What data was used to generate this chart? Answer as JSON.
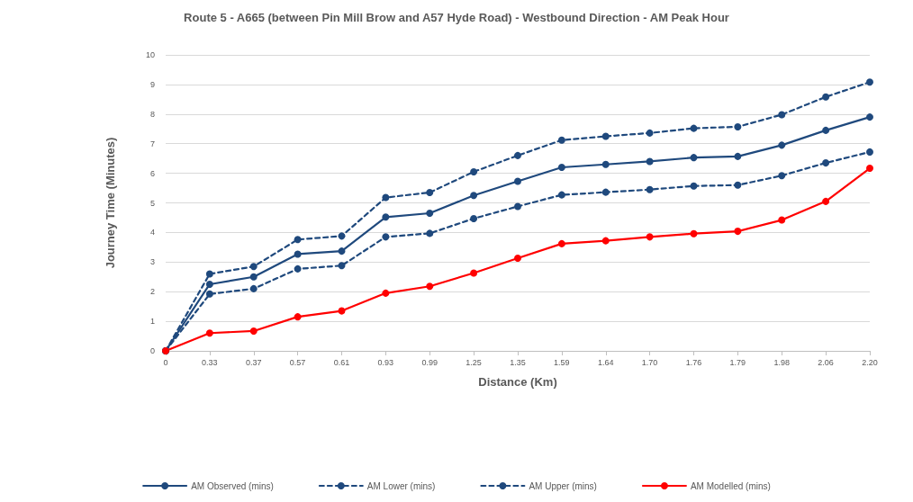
{
  "chart_data": {
    "type": "line",
    "title": "Route 5 - A665 (between Pin Mill Brow and A57 Hyde Road) - Westbound Direction - AM Peak Hour",
    "xlabel": "Distance (Km)",
    "ylabel": "Journey Time (Minutes)",
    "categories": [
      "0",
      "0.33",
      "0.37",
      "0.57",
      "0.61",
      "0.93",
      "0.99",
      "1.25",
      "1.35",
      "1.59",
      "1.64",
      "1.70",
      "1.76",
      "1.79",
      "1.98",
      "2.06",
      "2.20"
    ],
    "series": [
      {
        "name": "AM Observed (mins)",
        "color": "#1f497d",
        "line_style": "solid",
        "values": [
          0,
          2.25,
          2.5,
          3.27,
          3.37,
          4.52,
          4.65,
          5.25,
          5.73,
          6.2,
          6.3,
          6.4,
          6.53,
          6.57,
          6.95,
          7.45,
          7.9
        ]
      },
      {
        "name": "AM Lower (mins)",
        "color": "#1f497d",
        "line_style": "dashed",
        "values": [
          0,
          1.92,
          2.1,
          2.77,
          2.88,
          3.85,
          3.97,
          4.47,
          4.88,
          5.27,
          5.36,
          5.45,
          5.57,
          5.6,
          5.92,
          6.35,
          6.72
        ]
      },
      {
        "name": "AM Upper (mins)",
        "color": "#1f497d",
        "line_style": "dashed",
        "values": [
          0,
          2.6,
          2.85,
          3.76,
          3.88,
          5.18,
          5.35,
          6.05,
          6.6,
          7.12,
          7.25,
          7.36,
          7.52,
          7.57,
          7.98,
          8.58,
          9.08
        ]
      },
      {
        "name": "AM Modelled (mins)",
        "color": "#ff0000",
        "line_style": "solid",
        "values": [
          0,
          0.6,
          0.67,
          1.15,
          1.35,
          1.95,
          2.18,
          2.63,
          3.13,
          3.62,
          3.72,
          3.85,
          3.96,
          4.04,
          4.42,
          5.05,
          6.17
        ]
      }
    ],
    "ylim": [
      0,
      10
    ],
    "yticks": [
      0,
      1,
      2,
      3,
      4,
      5,
      6,
      7,
      8,
      9,
      10
    ],
    "grid": "y",
    "legend": "bottom",
    "marker": "circle"
  }
}
